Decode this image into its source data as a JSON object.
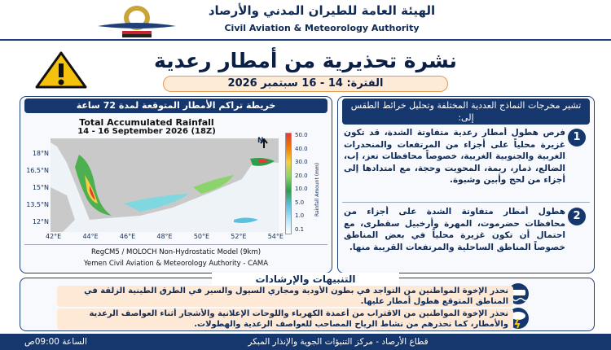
{
  "header": {
    "org_ar": "الهيئة العامة للطيران المدني والأرصاد",
    "org_en": "Civil Aviation & Meteorology Authority"
  },
  "title": "نشرة تحذيرية من أمطار رعدية",
  "period": "الفترة: 14 - 16 سبتمبر 2026",
  "map": {
    "heading": "خريطة تراكم الأمطار المتوقعة لمدة 72 ساعة",
    "title": "Total Accumulated Rainfall",
    "subtitle": "14 - 16 September 2026 (18Z)",
    "lat_labels": [
      "18°N",
      "16.5°N",
      "15°N",
      "13.5°N",
      "12°N"
    ],
    "lon_labels": [
      "42°E",
      "44°E",
      "46°E",
      "48°E",
      "50°E",
      "52°E",
      "54°E"
    ],
    "north": "N",
    "colorbar_label": "Rainfall Amount (mm)",
    "colorbar_ticks": [
      "50.0",
      "40.0",
      "30.0",
      "20.0",
      "10.0",
      "5.0",
      "1.0",
      "0.1"
    ],
    "credits": [
      "RegCM5 / MOLOCH Non-Hydrostatic Model (9km)",
      "Yemen Civil Aviation & Meteorology Authority - CAMA"
    ]
  },
  "forecast": {
    "intro": "تشير مخرجات النماذج العددية المختلفة وتحليل خرائط الطقس إلى:",
    "items": [
      {
        "number": "1",
        "text": "فرص هطول أمطار رعدية متفاوتة الشدة، قد تكون غزيرة محلياً على أجزاء من المرتفعات والمنحدرات الغربية والجنوبية الغربية، خصوصاً محافظات تعز، إب، الضالع، ذمار، ريمة، المحويت وحجة، مع امتدادها إلى أجزاء من لحج وأبين وشبوة."
      },
      {
        "number": "2",
        "text": "هطول أمطار متفاوتة الشدة على أجزاء من محافظات حضرموت، المهرة وأرخبيل سقطرى، مع احتمال أن تكون غزيرة محلياً في بعض المناطق خصوصاً المناطق الساحلية والمرتفعات القريبة منها."
      }
    ]
  },
  "guidance": {
    "heading": "التنبيهات والإرشادات",
    "items": [
      "نحذر الإخوة المواطنين من التواجد في بطون الأودية ومجاري السيول والسير في الطرق الطينية الزلقة في المناطق المتوقع هطول أمطار عليها.",
      "نحذر الإخوة المواطنين من الاقتراب من أعمدة الكهرباء واللوحات الإعلانية والأشجار أثناء العواصف الرعدية والأمطار، كما نحذرهم من نشاط الرياح المصاحب للعواصف الرعدية والهطولات."
    ]
  },
  "footer": {
    "text": "قطاع الأرصاد - مركز التنبؤات الجوية والإنذار المبكر",
    "time": "الساعة 09:00ص"
  }
}
